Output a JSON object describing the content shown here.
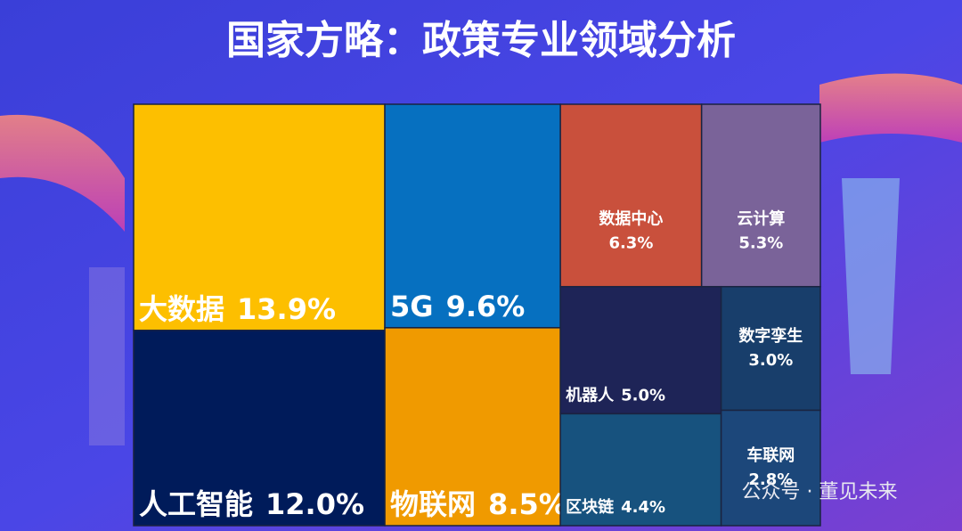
{
  "chart_data": {
    "type": "treemap",
    "title": "国家方略：政策专业领域分析",
    "categories": [
      "大数据",
      "人工智能",
      "5G",
      "物联网",
      "数据中心",
      "云计算",
      "机器人",
      "区块链",
      "数字孪生",
      "车联网"
    ],
    "values": [
      13.9,
      12.0,
      9.6,
      8.5,
      6.3,
      5.3,
      5.0,
      4.4,
      3.0,
      2.8
    ],
    "value_labels": [
      "13.9%",
      "12.0%",
      "9.6%",
      "8.5%",
      "6.3%",
      "5.3%",
      "5.0%",
      "4.4%",
      "3.0%",
      "2.8%"
    ],
    "colors": [
      "#fdbf00",
      "#001b5a",
      "#0670c0",
      "#f09a00",
      "#c9503c",
      "#7a6399",
      "#1e2457",
      "#17527e",
      "#183e6b",
      "#1c477a"
    ]
  },
  "watermark": "公众号 · 董见未来"
}
